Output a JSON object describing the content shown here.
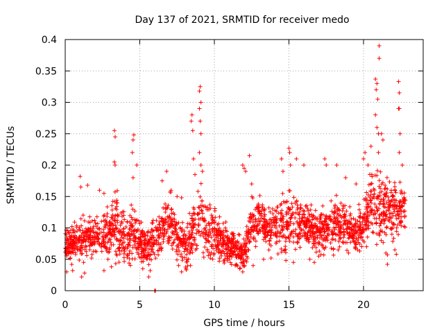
{
  "chart_data": {
    "type": "scatter",
    "title": "Day 137 of 2021, SRMTID for receiver medo",
    "xlabel": "GPS time / hours",
    "ylabel": "SRMTID / TECUs",
    "xlim": [
      0,
      24
    ],
    "ylim": [
      0,
      0.4
    ],
    "x_ticks": [
      0,
      5,
      10,
      15,
      20
    ],
    "x_tick_labels": [
      "0",
      "5",
      "10",
      "15",
      "20"
    ],
    "y_ticks": [
      0,
      0.05,
      0.1,
      0.15,
      0.2,
      0.25,
      0.3,
      0.35,
      0.4
    ],
    "y_tick_labels": [
      "0",
      "0.05",
      "0.1",
      "0.15",
      "0.2",
      "0.25",
      "0.3",
      "0.35",
      "0.4"
    ],
    "grid": true,
    "marker": "+",
    "series_color": "#ff0000",
    "envelope": {
      "description": "approximate typical level and spread of SRMTID vs time",
      "x": [
        0,
        1,
        2,
        3,
        3.3,
        4,
        4.5,
        5,
        5.5,
        6,
        7,
        8,
        8.5,
        9,
        9.3,
        10,
        11,
        12,
        12.5,
        13,
        14,
        15,
        16,
        17,
        18,
        19,
        19.5,
        20,
        20.5,
        21,
        21.5,
        22,
        22.5,
        22.8
      ],
      "center": [
        0.07,
        0.08,
        0.09,
        0.09,
        0.11,
        0.08,
        0.09,
        0.08,
        0.07,
        0.08,
        0.11,
        0.07,
        0.09,
        0.12,
        0.1,
        0.09,
        0.07,
        0.06,
        0.11,
        0.11,
        0.1,
        0.11,
        0.11,
        0.09,
        0.11,
        0.1,
        0.09,
        0.11,
        0.14,
        0.13,
        0.13,
        0.13,
        0.13,
        0.13
      ],
      "spread": [
        0.025,
        0.035,
        0.035,
        0.04,
        0.06,
        0.04,
        0.05,
        0.035,
        0.03,
        0.035,
        0.045,
        0.03,
        0.05,
        0.07,
        0.05,
        0.04,
        0.03,
        0.025,
        0.04,
        0.04,
        0.04,
        0.05,
        0.04,
        0.04,
        0.05,
        0.035,
        0.03,
        0.04,
        0.05,
        0.07,
        0.05,
        0.05,
        0.04,
        0.03
      ]
    },
    "points": [
      [
        3.3,
        0.255
      ],
      [
        3.35,
        0.245
      ],
      [
        3.3,
        0.205
      ],
      [
        3.35,
        0.2
      ],
      [
        4.6,
        0.248
      ],
      [
        4.55,
        0.24
      ],
      [
        4.5,
        0.22
      ],
      [
        4.55,
        0.18
      ],
      [
        4.8,
        0.2
      ],
      [
        1.0,
        0.182
      ],
      [
        1.05,
        0.165
      ],
      [
        1.5,
        0.168
      ],
      [
        2.3,
        0.16
      ],
      [
        2.6,
        0.155
      ],
      [
        6.5,
        0.175
      ],
      [
        6.8,
        0.19
      ],
      [
        7.1,
        0.16
      ],
      [
        7.5,
        0.15
      ],
      [
        7.8,
        0.148
      ],
      [
        8.5,
        0.28
      ],
      [
        8.45,
        0.27
      ],
      [
        8.55,
        0.255
      ],
      [
        8.6,
        0.21
      ],
      [
        8.7,
        0.185
      ],
      [
        9.05,
        0.325
      ],
      [
        9.0,
        0.318
      ],
      [
        9.1,
        0.3
      ],
      [
        9.0,
        0.29
      ],
      [
        9.05,
        0.27
      ],
      [
        9.1,
        0.25
      ],
      [
        9.0,
        0.22
      ],
      [
        9.1,
        0.2
      ],
      [
        9.2,
        0.19
      ],
      [
        11.9,
        0.2
      ],
      [
        12.0,
        0.195
      ],
      [
        12.1,
        0.19
      ],
      [
        12.35,
        0.215
      ],
      [
        12.5,
        0.17
      ],
      [
        14.5,
        0.21
      ],
      [
        14.6,
        0.19
      ],
      [
        15.0,
        0.227
      ],
      [
        15.05,
        0.22
      ],
      [
        15.1,
        0.2
      ],
      [
        15.5,
        0.21
      ],
      [
        16.0,
        0.2
      ],
      [
        17.4,
        0.21
      ],
      [
        17.5,
        0.2
      ],
      [
        18.2,
        0.2
      ],
      [
        18.8,
        0.18
      ],
      [
        19.5,
        0.17
      ],
      [
        20.0,
        0.21
      ],
      [
        20.1,
        0.22
      ],
      [
        20.3,
        0.2
      ],
      [
        20.5,
        0.23
      ],
      [
        20.8,
        0.337
      ],
      [
        20.9,
        0.33
      ],
      [
        20.85,
        0.32
      ],
      [
        20.95,
        0.305
      ],
      [
        20.8,
        0.28
      ],
      [
        20.9,
        0.26
      ],
      [
        21.0,
        0.25
      ],
      [
        21.05,
        0.39
      ],
      [
        21.05,
        0.37
      ],
      [
        21.2,
        0.25
      ],
      [
        21.3,
        0.24
      ],
      [
        21.0,
        0.22
      ],
      [
        22.35,
        0.333
      ],
      [
        22.4,
        0.315
      ],
      [
        22.4,
        0.29
      ],
      [
        22.35,
        0.29
      ],
      [
        22.45,
        0.25
      ],
      [
        22.4,
        0.22
      ],
      [
        22.6,
        0.2
      ],
      [
        21.5,
        0.06
      ],
      [
        21.6,
        0.057
      ],
      [
        22.1,
        0.065
      ],
      [
        22.2,
        0.058
      ],
      [
        21.6,
        0.042
      ],
      [
        0.1,
        0.03
      ],
      [
        0.5,
        0.032
      ],
      [
        1.1,
        0.022
      ],
      [
        1.3,
        0.028
      ],
      [
        2.6,
        0.032
      ],
      [
        3.1,
        0.038
      ],
      [
        5.2,
        0.035
      ],
      [
        5.6,
        0.022
      ],
      [
        5.7,
        0.032
      ],
      [
        6.0,
        0.0
      ],
      [
        6.05,
        0.0
      ],
      [
        7.6,
        0.04
      ],
      [
        7.8,
        0.03
      ],
      [
        8.1,
        0.035
      ],
      [
        8.4,
        0.04
      ],
      [
        11.0,
        0.05
      ],
      [
        11.4,
        0.04
      ],
      [
        11.7,
        0.035
      ],
      [
        11.9,
        0.03
      ],
      [
        12.6,
        0.04
      ],
      [
        13.3,
        0.05
      ],
      [
        13.8,
        0.052
      ],
      [
        14.8,
        0.048
      ],
      [
        15.3,
        0.045
      ],
      [
        16.4,
        0.05
      ],
      [
        16.7,
        0.045
      ],
      [
        17.0,
        0.055
      ],
      [
        18.3,
        0.065
      ],
      [
        19.0,
        0.06
      ],
      [
        19.6,
        0.065
      ],
      [
        20.2,
        0.07
      ]
    ]
  }
}
